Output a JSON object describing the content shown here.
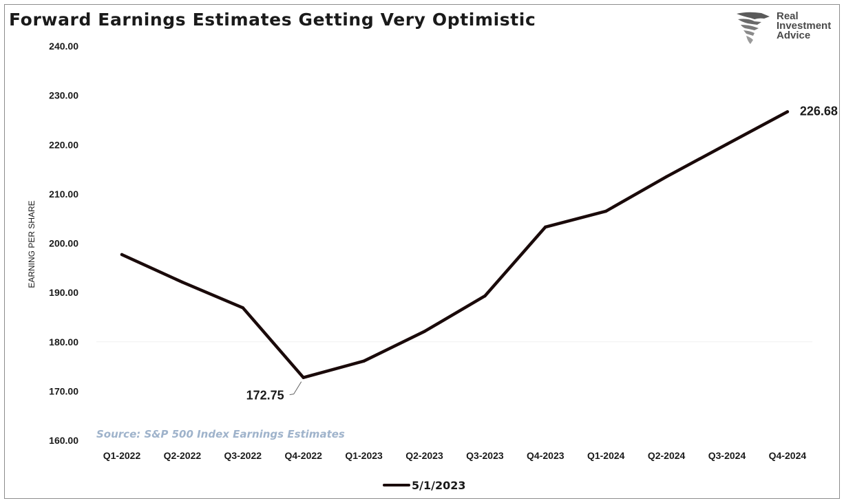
{
  "header": {
    "title": "Forward Earnings Estimates Getting Very Optimistic"
  },
  "logo": {
    "icon": "eagle-head-logo-icon",
    "lines": [
      "Real",
      "Investment",
      "Advice"
    ]
  },
  "source_note": "Source: S&P 500 Index Earnings Estimates",
  "chart_data": {
    "type": "line",
    "title": "Forward Earnings Estimates Getting Very Optimistic",
    "xlabel": "",
    "ylabel": "EARNING PER SHARE",
    "ylim": [
      160,
      240
    ],
    "yticks": [
      "160.00",
      "170.00",
      "180.00",
      "190.00",
      "200.00",
      "210.00",
      "220.00",
      "230.00",
      "240.00"
    ],
    "categories": [
      "Q1-2022",
      "Q2-2022",
      "Q3-2022",
      "Q4-2022",
      "Q1-2023",
      "Q2-2023",
      "Q3-2023",
      "Q4-2023",
      "Q1-2024",
      "Q2-2024",
      "Q3-2024",
      "Q4-2024"
    ],
    "series": [
      {
        "name": "5/1/2023",
        "color": "#1a0a0a",
        "values": [
          197.7,
          192.1,
          186.9,
          172.75,
          176.1,
          182.1,
          189.3,
          203.3,
          206.5,
          213.5,
          220.1,
          226.68
        ]
      }
    ],
    "annotations": [
      {
        "category": "Q4-2022",
        "value": 172.75,
        "text": "172.75"
      },
      {
        "category": "Q4-2024",
        "value": 226.68,
        "text": "226.68"
      }
    ],
    "grid": {
      "horizontal_line_at": 180
    },
    "legend_position": "bottom-center"
  }
}
